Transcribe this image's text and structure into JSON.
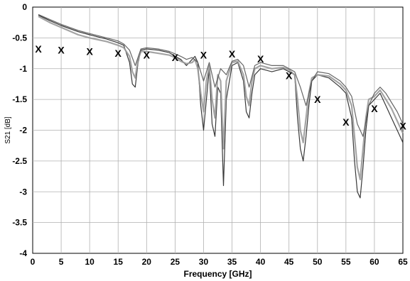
{
  "chart_data": {
    "type": "line",
    "xlabel": "Frequency [GHz]",
    "ylabel": "S21 [dB]",
    "xlim": [
      0,
      65
    ],
    "ylim": [
      -4,
      0
    ],
    "grid": true,
    "x_ticks": [
      0,
      5,
      10,
      15,
      20,
      25,
      30,
      35,
      40,
      45,
      50,
      55,
      60,
      65
    ],
    "y_ticks": [
      0,
      -0.5,
      -1,
      -1.5,
      -2,
      -2.5,
      -3,
      -3.5,
      -4
    ],
    "colors": {
      "traces": "#222222",
      "traces_light": "#9a9a9a",
      "markers": "#000000",
      "grid": "#b0b0b0"
    },
    "markers": {
      "symbol": "X",
      "points": [
        {
          "x": 1,
          "y": -0.68
        },
        {
          "x": 5,
          "y": -0.7
        },
        {
          "x": 10,
          "y": -0.72
        },
        {
          "x": 15,
          "y": -0.75
        },
        {
          "x": 20,
          "y": -0.78
        },
        {
          "x": 25,
          "y": -0.82
        },
        {
          "x": 30,
          "y": -0.78
        },
        {
          "x": 35,
          "y": -0.76
        },
        {
          "x": 40,
          "y": -0.84
        },
        {
          "x": 45,
          "y": -1.11
        },
        {
          "x": 50,
          "y": -1.5
        },
        {
          "x": 55,
          "y": -1.87
        },
        {
          "x": 60,
          "y": -1.65
        },
        {
          "x": 65,
          "y": -1.93
        }
      ]
    },
    "series": [
      {
        "x": [
          1,
          3,
          5,
          8,
          10,
          13,
          15,
          16,
          17,
          17.5,
          18,
          18.5,
          19,
          20,
          22,
          24,
          25,
          26,
          27,
          28,
          28.5,
          29,
          29.5,
          30,
          30.5,
          31,
          31.5,
          32,
          32.5,
          33,
          33.5,
          34,
          35,
          36,
          37,
          37.5,
          38,
          38.5,
          39,
          40,
          42,
          44,
          45,
          46,
          46.5,
          47,
          47.5,
          48,
          48.5,
          49,
          50,
          52,
          54,
          55,
          56,
          56.5,
          57,
          57.5,
          58,
          58.5,
          59,
          60,
          61,
          62,
          63,
          64,
          65
        ],
        "y": [
          -0.13,
          -0.22,
          -0.3,
          -0.4,
          -0.45,
          -0.52,
          -0.58,
          -0.62,
          -0.9,
          -1.25,
          -1.3,
          -0.9,
          -0.7,
          -0.68,
          -0.7,
          -0.74,
          -0.8,
          -0.85,
          -0.95,
          -0.85,
          -0.8,
          -0.9,
          -1.6,
          -2.0,
          -1.5,
          -1.0,
          -1.9,
          -2.1,
          -1.3,
          -1.4,
          -2.9,
          -1.5,
          -0.95,
          -0.9,
          -1.2,
          -1.7,
          -1.8,
          -1.4,
          -1.1,
          -1.0,
          -1.05,
          -1.0,
          -1.05,
          -1.1,
          -1.8,
          -2.3,
          -2.5,
          -2.1,
          -1.6,
          -1.2,
          -1.1,
          -1.15,
          -1.3,
          -1.4,
          -1.8,
          -2.5,
          -3.0,
          -3.1,
          -2.6,
          -2.0,
          -1.6,
          -1.5,
          -1.4,
          -1.6,
          -1.8,
          -2.0,
          -2.2
        ]
      },
      {
        "x": [
          1,
          3,
          5,
          8,
          10,
          13,
          15,
          16,
          17,
          17.5,
          18,
          18.5,
          19,
          20,
          22,
          24,
          25,
          26,
          27,
          28,
          28.5,
          29,
          29.5,
          30,
          30.5,
          31,
          31.5,
          32,
          32.5,
          33,
          33.5,
          34,
          35,
          36,
          37,
          37.5,
          38,
          38.5,
          39,
          40,
          42,
          44,
          45,
          46,
          46.5,
          47,
          47.5,
          48,
          48.5,
          49,
          50,
          52,
          54,
          55,
          56,
          56.5,
          57,
          57.5,
          58,
          58.5,
          59,
          60,
          61,
          62,
          63,
          64,
          65
        ],
        "y": [
          -0.15,
          -0.25,
          -0.33,
          -0.45,
          -0.5,
          -0.56,
          -0.62,
          -0.66,
          -0.8,
          -1.05,
          -1.15,
          -0.85,
          -0.72,
          -0.72,
          -0.75,
          -0.78,
          -0.82,
          -0.88,
          -0.92,
          -0.9,
          -0.85,
          -1.0,
          -1.4,
          -1.7,
          -1.2,
          -0.95,
          -1.5,
          -1.8,
          -1.1,
          -1.2,
          -2.3,
          -1.2,
          -0.9,
          -0.88,
          -1.1,
          -1.45,
          -1.6,
          -1.2,
          -1.0,
          -0.95,
          -1.0,
          -0.98,
          -1.02,
          -1.1,
          -1.5,
          -2.0,
          -2.2,
          -1.8,
          -1.4,
          -1.15,
          -1.1,
          -1.12,
          -1.25,
          -1.35,
          -1.6,
          -2.1,
          -2.6,
          -2.8,
          -2.3,
          -1.8,
          -1.5,
          -1.45,
          -1.35,
          -1.5,
          -1.65,
          -1.85,
          -2.05
        ]
      },
      {
        "x": [
          1,
          3,
          5,
          8,
          10,
          13,
          15,
          16,
          17,
          18,
          19,
          20,
          22,
          24,
          25,
          26,
          27,
          28,
          29,
          30,
          31,
          32,
          33,
          34,
          35,
          36,
          37,
          38,
          39,
          40,
          42,
          44,
          45,
          46,
          47,
          48,
          49,
          50,
          52,
          54,
          55,
          56,
          57,
          58,
          59,
          60,
          61,
          62,
          63,
          64,
          65
        ],
        "y": [
          -0.12,
          -0.2,
          -0.28,
          -0.38,
          -0.43,
          -0.5,
          -0.55,
          -0.6,
          -0.7,
          -0.95,
          -0.68,
          -0.66,
          -0.68,
          -0.72,
          -0.76,
          -0.8,
          -0.85,
          -0.82,
          -0.9,
          -1.2,
          -0.9,
          -1.3,
          -1.0,
          -1.1,
          -0.88,
          -0.85,
          -0.95,
          -1.3,
          -0.95,
          -0.9,
          -0.95,
          -0.95,
          -1.0,
          -1.05,
          -1.3,
          -1.6,
          -1.2,
          -1.05,
          -1.08,
          -1.2,
          -1.3,
          -1.45,
          -1.9,
          -2.1,
          -1.6,
          -1.4,
          -1.3,
          -1.4,
          -1.55,
          -1.7,
          -1.9
        ]
      }
    ]
  }
}
